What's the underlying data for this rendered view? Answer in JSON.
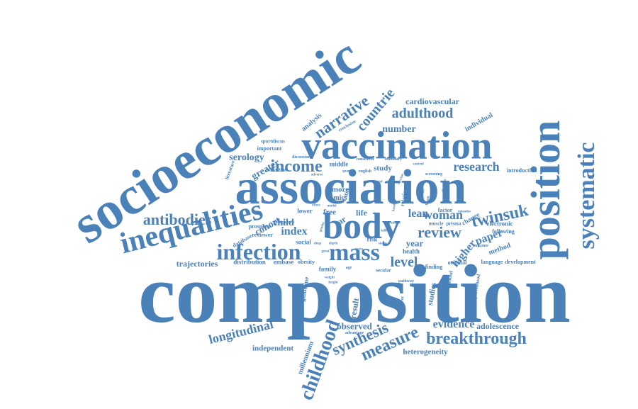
{
  "text_color": "#4a81b8",
  "background": "#ffffff",
  "words": [
    {
      "text": "composition"
    },
    {
      "text": "socioeconomic"
    },
    {
      "text": "association"
    },
    {
      "text": "vaccination"
    },
    {
      "text": "body"
    },
    {
      "text": "position"
    },
    {
      "text": "inequalities"
    },
    {
      "text": "systematic"
    },
    {
      "text": "infection"
    },
    {
      "text": "mass"
    },
    {
      "text": "childhood"
    },
    {
      "text": "measure"
    },
    {
      "text": "synthesis"
    },
    {
      "text": "breakthrough"
    },
    {
      "text": "narrative"
    },
    {
      "text": "adulthood"
    },
    {
      "text": "countrie"
    },
    {
      "text": "income"
    },
    {
      "text": "antibodies"
    },
    {
      "text": "twinsuk"
    },
    {
      "text": "review"
    },
    {
      "text": "woman"
    },
    {
      "text": "level"
    },
    {
      "text": "research"
    },
    {
      "text": "longitudinal"
    },
    {
      "text": "evidence"
    },
    {
      "text": "higher"
    },
    {
      "text": "paper"
    },
    {
      "text": "lean"
    },
    {
      "text": "index"
    },
    {
      "text": "number"
    },
    {
      "text": "cardiovascular"
    },
    {
      "text": "cohort"
    },
    {
      "text": "serology"
    },
    {
      "text": "greater"
    },
    {
      "text": "trajectories"
    },
    {
      "text": "result"
    },
    {
      "text": "observed"
    },
    {
      "text": "adolescence"
    },
    {
      "text": "heterogeneity"
    },
    {
      "text": "independent"
    },
    {
      "text": "millennium"
    },
    {
      "text": "individual"
    },
    {
      "text": "analysis"
    },
    {
      "text": "child"
    },
    {
      "text": "year"
    },
    {
      "text": "life"
    },
    {
      "text": "free"
    },
    {
      "text": "sar"
    },
    {
      "text": "more"
    },
    {
      "text": "mics"
    },
    {
      "text": "study"
    },
    {
      "text": "method"
    },
    {
      "text": "electronic"
    },
    {
      "text": "following"
    },
    {
      "text": "factor"
    },
    {
      "text": "distribution"
    },
    {
      "text": "embase"
    },
    {
      "text": "obesity"
    },
    {
      "text": "social"
    },
    {
      "text": "lower"
    },
    {
      "text": "health"
    },
    {
      "text": "risk"
    },
    {
      "text": "family"
    },
    {
      "text": "studies"
    },
    {
      "text": "guideline"
    },
    {
      "text": "language"
    },
    {
      "text": "development"
    },
    {
      "text": "introduction"
    },
    {
      "text": "important"
    },
    {
      "text": "extraction"
    },
    {
      "text": "sportdiscus"
    },
    {
      "text": "database"
    },
    {
      "text": "prospero"
    },
    {
      "text": "reviewer"
    },
    {
      "text": "pregnancy"
    },
    {
      "text": "literature"
    },
    {
      "text": "middle"
    },
    {
      "text": "consistent"
    },
    {
      "text": "summary"
    },
    {
      "text": "english"
    },
    {
      "text": "quantity"
    },
    {
      "text": "discussion"
    },
    {
      "text": "adverse"
    },
    {
      "text": "conclusion"
    },
    {
      "text": "ratio"
    },
    {
      "text": "relation"
    },
    {
      "text": "screening"
    },
    {
      "text": "change"
    },
    {
      "text": "original"
    },
    {
      "text": "finding"
    },
    {
      "text": "muscle"
    },
    {
      "text": "prisma"
    },
    {
      "text": "background"
    },
    {
      "text": "parenthood"
    },
    {
      "text": "pathway"
    },
    {
      "text": "secular"
    },
    {
      "text": "advantage"
    },
    {
      "text": "assessment"
    },
    {
      "text": "effect"
    },
    {
      "text": "model"
    },
    {
      "text": "examine"
    },
    {
      "text": "weight"
    },
    {
      "text": "height"
    },
    {
      "text": "great"
    },
    {
      "text": "depth"
    },
    {
      "text": "deep"
    },
    {
      "text": "follow"
    },
    {
      "text": "baseline"
    },
    {
      "text": "period"
    },
    {
      "text": "direction"
    },
    {
      "text": "length"
    },
    {
      "text": "episodes"
    },
    {
      "text": "control"
    },
    {
      "text": "vaccine"
    },
    {
      "text": "trial"
    },
    {
      "text": "status"
    },
    {
      "text": "stratified"
    },
    {
      "text": "access"
    },
    {
      "text": "hic"
    },
    {
      "text": "outcome"
    },
    {
      "text": "gender"
    },
    {
      "text": "age"
    }
  ]
}
